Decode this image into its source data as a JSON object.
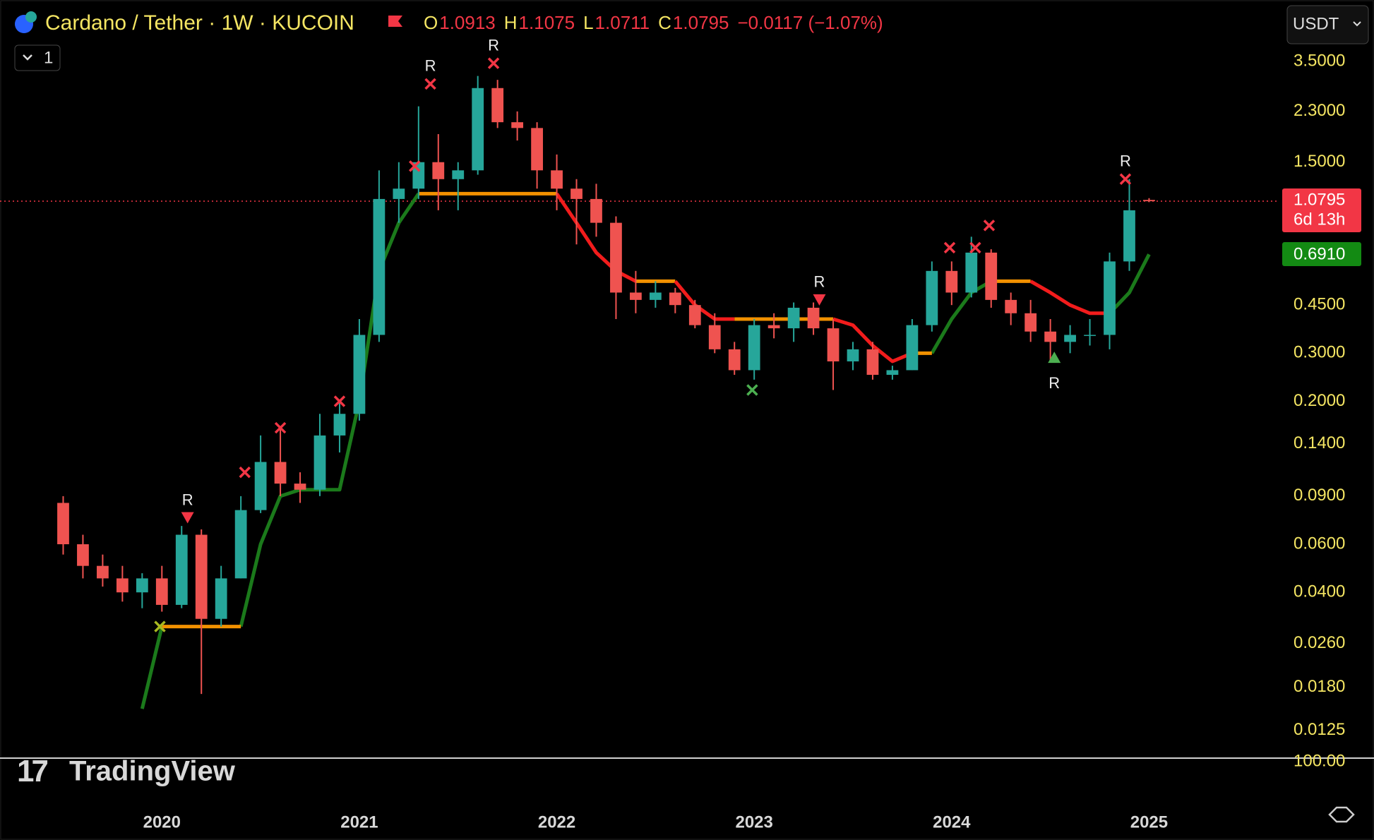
{
  "header": {
    "symbol": "Cardano / Tether · 1W · KUCOIN",
    "ohlc": [
      {
        "label": "O",
        "value": 1.0913
      },
      {
        "label": "H",
        "value": 1.1075
      },
      {
        "label": "L",
        "value": 1.0711
      },
      {
        "label": "C",
        "value": 1.0795
      }
    ],
    "change": "−0.0117 (−1.07%)",
    "currency": "USDT",
    "collapse": "1",
    "brand": "TradingView"
  },
  "chart_data": {
    "type": "candlestick",
    "log_scale": true,
    "grid": false,
    "up_color": "#26a69a",
    "down_color": "#ef5350",
    "x": [
      2019.5,
      2019.6,
      2019.7,
      2019.8,
      2019.9,
      2020.0,
      2020.1,
      2020.2,
      2020.3,
      2020.4,
      2020.5,
      2020.6,
      2020.7,
      2020.8,
      2020.9,
      2021.0,
      2021.1,
      2021.2,
      2021.3,
      2021.4,
      2021.5,
      2021.6,
      2021.7,
      2021.8,
      2021.9,
      2022.0,
      2022.1,
      2022.2,
      2022.3,
      2022.4,
      2022.5,
      2022.6,
      2022.7,
      2022.8,
      2022.9,
      2023.0,
      2023.1,
      2023.2,
      2023.3,
      2023.4,
      2023.5,
      2023.6,
      2023.7,
      2023.8,
      2023.9,
      2024.0,
      2024.1,
      2024.2,
      2024.3,
      2024.4,
      2024.5,
      2024.6,
      2024.7,
      2024.8,
      2024.9,
      2025.0
    ],
    "open": [
      0.085,
      0.06,
      0.05,
      0.045,
      0.04,
      0.045,
      0.036,
      0.065,
      0.032,
      0.045,
      0.08,
      0.12,
      0.1,
      0.095,
      0.15,
      0.18,
      0.35,
      1.1,
      1.2,
      1.5,
      1.3,
      1.4,
      2.8,
      2.1,
      2.0,
      1.4,
      1.2,
      1.1,
      0.9,
      0.5,
      0.47,
      0.5,
      0.45,
      0.38,
      0.31,
      0.26,
      0.38,
      0.37,
      0.44,
      0.37,
      0.28,
      0.31,
      0.25,
      0.26,
      0.38,
      0.6,
      0.5,
      0.7,
      0.47,
      0.42,
      0.36,
      0.33,
      0.35,
      0.35,
      0.65,
      1.0913
    ],
    "high": [
      0.09,
      0.065,
      0.055,
      0.05,
      0.047,
      0.05,
      0.07,
      0.068,
      0.05,
      0.09,
      0.15,
      0.16,
      0.11,
      0.18,
      0.2,
      0.4,
      1.4,
      1.5,
      2.4,
      1.9,
      1.5,
      3.1,
      3.0,
      2.3,
      2.1,
      1.6,
      1.3,
      1.25,
      0.95,
      0.6,
      0.55,
      0.52,
      0.47,
      0.42,
      0.33,
      0.4,
      0.42,
      0.46,
      0.46,
      0.4,
      0.33,
      0.33,
      0.27,
      0.4,
      0.65,
      0.65,
      0.8,
      0.72,
      0.5,
      0.47,
      0.4,
      0.38,
      0.4,
      0.7,
      1.3,
      1.1075
    ],
    "low": [
      0.055,
      0.045,
      0.042,
      0.037,
      0.035,
      0.034,
      0.035,
      0.017,
      0.03,
      0.045,
      0.078,
      0.09,
      0.085,
      0.09,
      0.13,
      0.17,
      0.33,
      0.9,
      1.1,
      1.0,
      1.0,
      1.35,
      2.0,
      1.8,
      1.2,
      1.0,
      0.75,
      0.8,
      0.4,
      0.42,
      0.44,
      0.42,
      0.37,
      0.3,
      0.25,
      0.24,
      0.34,
      0.33,
      0.35,
      0.22,
      0.26,
      0.24,
      0.24,
      0.26,
      0.36,
      0.45,
      0.48,
      0.44,
      0.38,
      0.33,
      0.28,
      0.3,
      0.32,
      0.31,
      0.6,
      1.0711
    ],
    "close": [
      0.06,
      0.05,
      0.045,
      0.04,
      0.045,
      0.036,
      0.065,
      0.032,
      0.045,
      0.08,
      0.12,
      0.1,
      0.095,
      0.15,
      0.18,
      0.35,
      1.1,
      1.2,
      1.5,
      1.3,
      1.4,
      2.8,
      2.1,
      2.0,
      1.4,
      1.2,
      1.1,
      0.9,
      0.5,
      0.47,
      0.5,
      0.45,
      0.38,
      0.31,
      0.26,
      0.38,
      0.37,
      0.44,
      0.37,
      0.28,
      0.31,
      0.25,
      0.26,
      0.38,
      0.6,
      0.5,
      0.7,
      0.47,
      0.42,
      0.36,
      0.33,
      0.35,
      0.35,
      0.65,
      1.0,
      1.0795
    ],
    "series": [
      {
        "color": "#1b7a1b",
        "values": [
          null,
          null,
          null,
          null,
          0.015,
          0.03,
          null,
          null,
          null,
          0.03,
          0.06,
          0.09,
          0.095,
          0.095,
          0.095,
          0.2,
          0.6,
          0.9,
          1.15,
          null,
          null,
          null,
          null,
          null,
          null,
          null,
          null,
          null,
          null,
          null,
          null,
          null,
          null,
          null,
          null,
          null,
          null,
          null,
          null,
          null,
          null,
          null,
          null,
          null,
          0.3,
          0.4,
          0.5,
          0.55,
          null,
          null,
          null,
          null,
          null,
          0.42,
          0.5,
          0.69
        ]
      },
      {
        "color": "#f29100",
        "values": [
          null,
          null,
          null,
          null,
          null,
          0.03,
          0.03,
          0.03,
          0.03,
          0.03,
          null,
          null,
          null,
          null,
          null,
          null,
          null,
          null,
          1.15,
          1.15,
          1.15,
          1.15,
          1.15,
          1.15,
          1.15,
          1.15,
          null,
          null,
          null,
          0.55,
          0.55,
          0.55,
          null,
          null,
          0.4,
          0.4,
          0.4,
          0.4,
          0.4,
          0.4,
          null,
          null,
          null,
          0.3,
          0.3,
          null,
          null,
          0.55,
          0.55,
          0.55,
          null,
          null,
          null,
          null,
          null,
          null
        ]
      },
      {
        "color": "#f21c1c",
        "values": [
          null,
          null,
          null,
          null,
          null,
          null,
          null,
          null,
          null,
          null,
          null,
          null,
          null,
          null,
          null,
          null,
          null,
          null,
          null,
          null,
          null,
          null,
          null,
          null,
          null,
          1.15,
          0.9,
          0.7,
          0.6,
          0.55,
          null,
          0.55,
          0.45,
          0.4,
          0.4,
          null,
          null,
          null,
          null,
          0.4,
          0.38,
          0.32,
          0.28,
          0.3,
          null,
          null,
          null,
          null,
          null,
          0.55,
          0.5,
          0.45,
          0.42,
          0.42,
          null,
          null
        ]
      }
    ],
    "signals": [
      {
        "x": 2020.13,
        "y": 0.075,
        "marker": "triangle-down",
        "color": "#f23645",
        "label": "R"
      },
      {
        "x": 2021.36,
        "y": 2.9,
        "marker": "cross",
        "color": "#f23645",
        "label": "R"
      },
      {
        "x": 2021.68,
        "y": 3.45,
        "marker": "cross",
        "color": "#f23645",
        "label": "R"
      },
      {
        "x": 2023.33,
        "y": 0.47,
        "marker": "triangle-down",
        "color": "#f23645",
        "label": "R"
      },
      {
        "x": 2024.52,
        "y": 0.29,
        "marker": "triangle-up",
        "color": "#4caf50",
        "label": "R"
      },
      {
        "x": 2024.88,
        "y": 1.3,
        "marker": "cross",
        "color": "#f23645",
        "label": "R"
      },
      {
        "x": 2019.99,
        "y": 0.03,
        "marker": "cross",
        "color": "#a8b820"
      },
      {
        "x": 2020.42,
        "y": 0.11,
        "marker": "cross",
        "color": "#f23645"
      },
      {
        "x": 2020.6,
        "y": 0.16,
        "marker": "cross",
        "color": "#f23645"
      },
      {
        "x": 2020.9,
        "y": 0.2,
        "marker": "cross",
        "color": "#f23645"
      },
      {
        "x": 2021.28,
        "y": 1.45,
        "marker": "cross",
        "color": "#f23645"
      },
      {
        "x": 2022.99,
        "y": 0.22,
        "marker": "cross",
        "color": "#4caf50"
      },
      {
        "x": 2023.99,
        "y": 0.73,
        "marker": "cross",
        "color": "#f23645"
      },
      {
        "x": 2024.12,
        "y": 0.73,
        "marker": "cross",
        "color": "#f23645"
      },
      {
        "x": 2024.19,
        "y": 0.88,
        "marker": "cross",
        "color": "#f23645"
      }
    ],
    "last_price": {
      "value": 1.0795,
      "label": "1.0795",
      "countdown": "6d 13h",
      "color": "#f23645"
    },
    "trend_price": {
      "value": 0.691,
      "label": "0.6910",
      "color": "#138a13"
    },
    "ylim": [
      0.0099,
      5.88
    ],
    "yticks": [
      {
        "value": 3.5,
        "label": "3.5000"
      },
      {
        "value": 2.3,
        "label": "2.3000"
      },
      {
        "value": 1.5,
        "label": "1.5000"
      },
      {
        "value": 0.45,
        "label": "0.4500"
      },
      {
        "value": 0.3,
        "label": "0.3000"
      },
      {
        "value": 0.2,
        "label": "0.2000"
      },
      {
        "value": 0.14,
        "label": "0.1400"
      },
      {
        "value": 0.09,
        "label": "0.0900"
      },
      {
        "value": 0.06,
        "label": "0.0600"
      },
      {
        "value": 0.04,
        "label": "0.0400"
      },
      {
        "value": 0.026,
        "label": "0.0260"
      },
      {
        "value": 0.018,
        "label": "0.0180"
      },
      {
        "value": 0.0125,
        "label": "0.0125"
      }
    ],
    "ytick_cut": "100.00",
    "xlim": [
      2019.18,
      2025.66
    ],
    "xticks": [
      2020,
      2021,
      2022,
      2023,
      2024,
      2025
    ]
  }
}
